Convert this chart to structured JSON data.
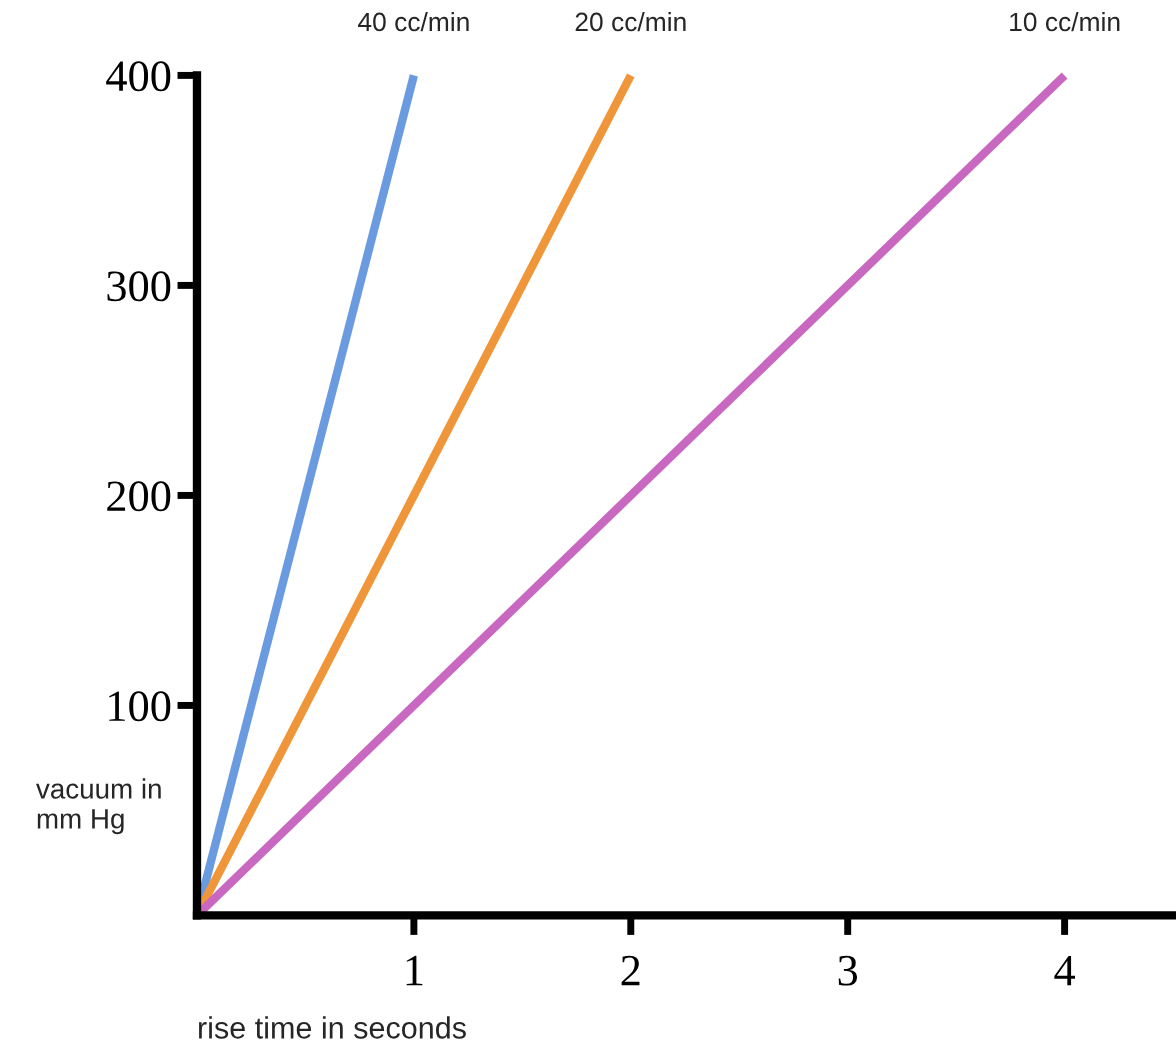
{
  "chart_data": {
    "type": "line",
    "xlabel": "rise time in seconds",
    "ylabel": "vacuum in\nmm Hg",
    "xlim": [
      0,
      4.5
    ],
    "ylim": [
      0,
      400
    ],
    "xticks": [
      1,
      2,
      3,
      4
    ],
    "yticks": [
      100,
      200,
      300,
      400
    ],
    "grid": false,
    "legend": false,
    "marker": "none",
    "line_style": "solid",
    "series": [
      {
        "name": "40 cc/min",
        "color": "#6a9ae0",
        "x": [
          0,
          1
        ],
        "values": [
          0,
          400
        ]
      },
      {
        "name": "20 cc/min",
        "color": "#f0963a",
        "x": [
          0,
          2
        ],
        "values": [
          0,
          400
        ]
      },
      {
        "name": "10 cc/min",
        "color": "#c868c0",
        "x": [
          0,
          4
        ],
        "values": [
          0,
          400
        ]
      }
    ]
  }
}
